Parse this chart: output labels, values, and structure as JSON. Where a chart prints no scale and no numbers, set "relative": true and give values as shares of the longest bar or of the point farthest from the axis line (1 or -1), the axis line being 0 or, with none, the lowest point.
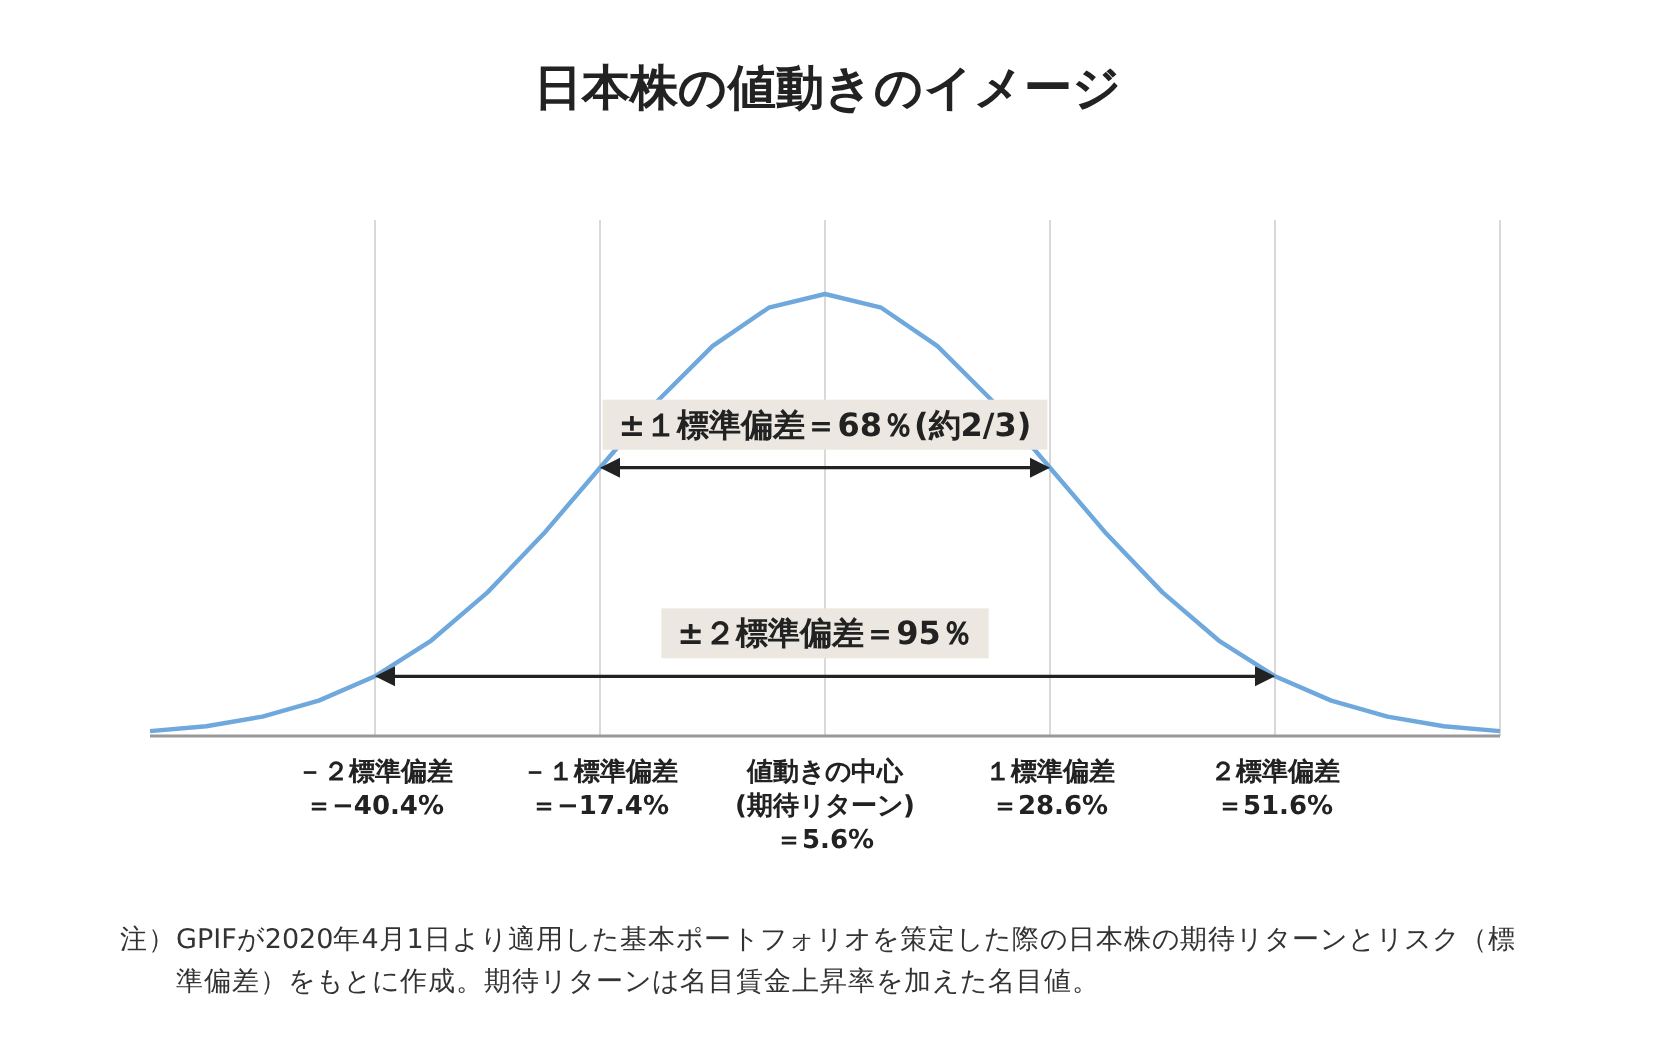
{
  "chart_data": {
    "type": "line",
    "title": "日本株の値動きのイメージ",
    "relative": true,
    "grid": "x",
    "marker": "none",
    "line_style": "solid",
    "categories": [
      null,
      null,
      null,
      null,
      "－２標準偏差＝−40.4%",
      null,
      null,
      null,
      "－１標準偏差＝−17.4%",
      null,
      null,
      null,
      "値動きの中心(期待リターン)＝5.6%",
      null,
      null,
      null,
      "１標準偏差＝28.6%",
      null,
      null,
      null,
      "２標準偏差＝51.6%",
      null,
      null,
      null,
      null
    ],
    "series": [
      {
        "color": "#6fa8dc",
        "values": [
          0.011,
          0.022,
          0.044,
          0.08,
          0.135,
          0.216,
          0.325,
          0.458,
          0.607,
          0.755,
          0.882,
          0.969,
          1,
          0.969,
          0.882,
          0.755,
          0.607,
          0.458,
          0.325,
          0.216,
          0.135,
          0.08,
          0.044,
          0.022,
          0.011
        ]
      }
    ],
    "annotations": [
      "±１標準偏差＝68％(約2/3)",
      "±２標準偏差＝95％",
      "注）GPIFが2020年4月1日より適用した基本ポートフォリオを策定した際の日本株の期待リターンとリスク（標準偏差）をもとに作成。期待リターンは名目賃金上昇率を加えた名目値。"
    ]
  }
}
